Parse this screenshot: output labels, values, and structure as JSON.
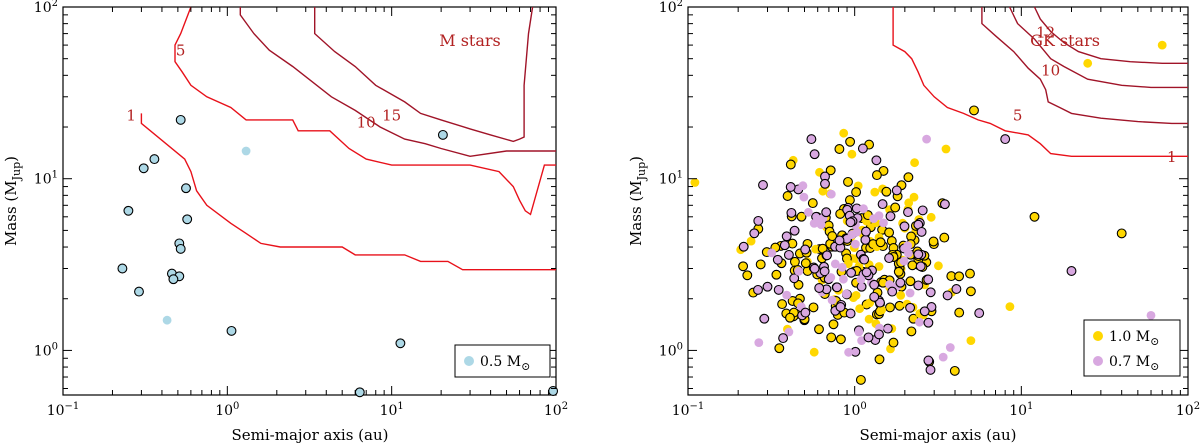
{
  "chart_data": [
    {
      "type": "scatter",
      "title": "M stars",
      "xlabel": "Semi-major axis (au)",
      "ylabel": "Mass (M",
      "ylabel_sub": "Jup",
      "ylabel_close": ")",
      "xscale": "log",
      "yscale": "log",
      "xlim": [
        0.1,
        100
      ],
      "ylim": [
        0.55,
        100
      ],
      "x_ticks": [
        {
          "value": 0.1,
          "base": "10",
          "exp": "−1"
        },
        {
          "value": 1,
          "base": "10",
          "exp": "0"
        },
        {
          "value": 10,
          "base": "10",
          "exp": "1"
        },
        {
          "value": 100,
          "base": "10",
          "exp": "2"
        }
      ],
      "y_ticks": [
        {
          "value": 1,
          "base": "10",
          "exp": "0"
        },
        {
          "value": 10,
          "base": "10",
          "exp": "1"
        },
        {
          "value": 100,
          "base": "10",
          "exp": "2"
        }
      ],
      "legend": [
        {
          "label": "0.5 M",
          "sub": "⊙",
          "color": "#add8e6"
        }
      ],
      "contours": [
        {
          "level": "1",
          "label_at": [
            0.26,
            23.0
          ],
          "points": [
            [
              0.3,
              24
            ],
            [
              0.3,
              21
            ],
            [
              0.55,
              13
            ],
            [
              0.6,
              11
            ],
            [
              0.65,
              8.5
            ],
            [
              0.75,
              7
            ],
            [
              1.05,
              5.5
            ],
            [
              1.3,
              4.8
            ],
            [
              1.6,
              4.2
            ],
            [
              2.1,
              4.0
            ],
            [
              5,
              4.0
            ],
            [
              6,
              3.6
            ],
            [
              12,
              3.6
            ],
            [
              15,
              3.3
            ],
            [
              22,
              3.3
            ],
            [
              27,
              2.95
            ],
            [
              100,
              2.95
            ]
          ]
        },
        {
          "level": "5",
          "label_at": [
            0.52,
            55.0
          ],
          "points": [
            [
              0.6,
              100
            ],
            [
              0.52,
              70
            ],
            [
              0.48,
              60
            ],
            [
              0.48,
              48
            ],
            [
              0.53,
              42
            ],
            [
              0.6,
              35
            ],
            [
              0.75,
              30
            ],
            [
              1.05,
              26
            ],
            [
              1.3,
              22
            ],
            [
              2.5,
              22
            ],
            [
              2.7,
              19
            ],
            [
              4.2,
              19
            ],
            [
              5.5,
              15
            ],
            [
              7,
              13
            ],
            [
              10,
              12
            ],
            [
              30,
              12
            ],
            [
              45,
              11
            ],
            [
              55,
              9
            ],
            [
              60,
              7.5
            ],
            [
              65,
              6.5
            ],
            [
              70,
              6.2
            ],
            [
              85,
              12
            ],
            [
              100,
              12
            ]
          ]
        },
        {
          "level": "10",
          "label_at": [
            7.0,
            21.0
          ],
          "points": [
            [
              1.2,
              100
            ],
            [
              1.2,
              90
            ],
            [
              1.45,
              70
            ],
            [
              1.8,
              56
            ],
            [
              2.5,
              45
            ],
            [
              4.3,
              30
            ],
            [
              6,
              25
            ],
            [
              8.5,
              20
            ],
            [
              12,
              17
            ],
            [
              16,
              16
            ],
            [
              20,
              15
            ],
            [
              30,
              13.5
            ],
            [
              50,
              14.5
            ],
            [
              100,
              14.5
            ]
          ]
        },
        {
          "level": "15",
          "label_at": [
            10.0,
            23.0
          ],
          "points": [
            [
              3.4,
              100
            ],
            [
              3.4,
              70
            ],
            [
              4.5,
              55
            ],
            [
              6,
              45
            ],
            [
              8,
              35
            ],
            [
              12,
              28
            ],
            [
              15,
              24
            ],
            [
              20,
              22
            ],
            [
              30,
              19.5
            ],
            [
              40,
              18
            ],
            [
              55,
              16.5
            ],
            [
              60,
              17
            ],
            [
              64,
              17.5
            ],
            [
              64,
              35
            ],
            [
              68,
              70
            ],
            [
              72,
              100
            ]
          ]
        }
      ],
      "series": [
        {
          "name": "0.5 M⊙ (outlined)",
          "color": "#add8e6",
          "edge": "#000000",
          "points": [
            [
              0.52,
              22
            ],
            [
              0.25,
              6.5
            ],
            [
              0.29,
              2.2
            ],
            [
              0.23,
              3.0
            ],
            [
              0.31,
              11.5
            ],
            [
              0.36,
              13
            ],
            [
              0.56,
              8.8
            ],
            [
              0.57,
              5.8
            ],
            [
              0.51,
              4.2
            ],
            [
              0.52,
              3.9
            ],
            [
              0.46,
              2.8
            ],
            [
              0.51,
              2.7
            ],
            [
              0.47,
              2.6
            ],
            [
              1.06,
              1.3
            ],
            [
              11.3,
              1.1
            ],
            [
              6.4,
              0.57
            ],
            [
              20.5,
              18
            ],
            [
              96,
              0.58
            ]
          ]
        },
        {
          "name": "0.5 M⊙ (no edge)",
          "color": "#add8e6",
          "edge": "none",
          "points": [
            [
              1.3,
              14.5
            ],
            [
              0.43,
              1.5
            ]
          ]
        }
      ]
    },
    {
      "type": "scatter",
      "title": "GK stars",
      "xlabel": "Semi-major axis (au)",
      "ylabel": "Mass (M",
      "ylabel_sub": "Jup",
      "ylabel_close": ")",
      "xscale": "log",
      "yscale": "log",
      "xlim": [
        0.1,
        100
      ],
      "ylim": [
        0.55,
        100
      ],
      "x_ticks": [
        {
          "value": 0.1,
          "base": "10",
          "exp": "−1"
        },
        {
          "value": 1,
          "base": "10",
          "exp": "0"
        },
        {
          "value": 10,
          "base": "10",
          "exp": "1"
        },
        {
          "value": 100,
          "base": "10",
          "exp": "2"
        }
      ],
      "y_ticks": [
        {
          "value": 1,
          "base": "10",
          "exp": "0"
        },
        {
          "value": 10,
          "base": "10",
          "exp": "1"
        },
        {
          "value": 100,
          "base": "10",
          "exp": "2"
        }
      ],
      "legend": [
        {
          "label": "1.0 M",
          "sub": "⊙",
          "color": "#ffd700"
        },
        {
          "label": "0.7 M",
          "sub": "⊙",
          "color": "#d8a8e0"
        }
      ],
      "contours": [
        {
          "level": "1",
          "label_at": [
            80.0,
            13.2
          ],
          "points": [
            [
              1.7,
              100
            ],
            [
              1.7,
              60
            ],
            [
              2.0,
              55
            ],
            [
              2.2,
              50
            ],
            [
              2.4,
              42
            ],
            [
              2.6,
              35
            ],
            [
              3.0,
              30
            ],
            [
              3.6,
              26
            ],
            [
              4.5,
              24
            ],
            [
              5.5,
              22
            ],
            [
              6.5,
              21
            ],
            [
              8,
              19
            ],
            [
              11,
              18
            ],
            [
              13,
              16
            ],
            [
              15,
              14
            ],
            [
              20,
              13.5
            ],
            [
              40,
              13.5
            ],
            [
              70,
              13.5
            ],
            [
              100,
              13.5
            ]
          ]
        },
        {
          "level": "5",
          "label_at": [
            9.5,
            23.0
          ],
          "points": [
            [
              5.8,
              100
            ],
            [
              5.8,
              80
            ],
            [
              7,
              68
            ],
            [
              9,
              55
            ],
            [
              11,
              44
            ],
            [
              13,
              38
            ],
            [
              14,
              33
            ],
            [
              14.5,
              28
            ],
            [
              17,
              26
            ],
            [
              20,
              24
            ],
            [
              30,
              22.5
            ],
            [
              50,
              21.5
            ],
            [
              80,
              21
            ],
            [
              100,
              21
            ]
          ]
        },
        {
          "level": "10",
          "label_at": [
            15.0,
            42.0
          ],
          "points": [
            [
              8.5,
              100
            ],
            [
              9.5,
              80
            ],
            [
              12,
              65
            ],
            [
              15,
              50
            ],
            [
              18,
              45
            ],
            [
              25,
              38
            ],
            [
              40,
              35
            ],
            [
              60,
              34
            ],
            [
              100,
              34
            ]
          ]
        },
        {
          "level": "12",
          "label_at": [
            14.0,
            70.0
          ],
          "points": [
            [
              12,
              100
            ],
            [
              13,
              85
            ],
            [
              15,
              72
            ],
            [
              18,
              62
            ],
            [
              22,
              55
            ],
            [
              30,
              50
            ],
            [
              45,
              48
            ],
            [
              70,
              47
            ],
            [
              100,
              47
            ]
          ]
        }
      ],
      "series": [
        {
          "name": "1.0 M⊙",
          "color": "#ffd700",
          "edge": "#000000",
          "points": []
        },
        {
          "name": "0.7 M⊙",
          "color": "#d8a8e0",
          "edge": "#000000",
          "points": []
        }
      ]
    }
  ]
}
